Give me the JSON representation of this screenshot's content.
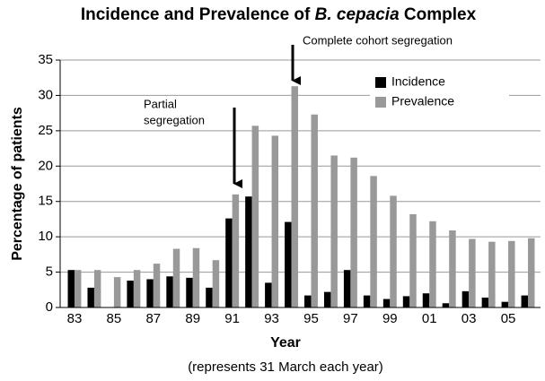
{
  "chart_data": {
    "type": "bar",
    "title_parts": [
      "Incidence and Prevalence of ",
      "B. cepacia",
      " Complex"
    ],
    "xlabel": "Year",
    "xnote": "(represents 31 March each year)",
    "ylabel": "Percentage of patients",
    "categories": [
      "83",
      null,
      "85",
      null,
      "87",
      null,
      "89",
      null,
      "91",
      null,
      "93",
      null,
      "95",
      null,
      "97",
      null,
      "99",
      null,
      "01",
      null,
      "03",
      null,
      "05",
      null
    ],
    "series": [
      {
        "name": "Incidence",
        "color": "#000000",
        "values": [
          5.3,
          2.8,
          0,
          3.8,
          4.0,
          4.4,
          4.2,
          2.8,
          12.6,
          15.7,
          3.5,
          12.1,
          1.7,
          2.2,
          5.3,
          1.7,
          1.2,
          1.6,
          2.0,
          0.6,
          2.3,
          1.4,
          0.8,
          1.7
        ]
      },
      {
        "name": "Prevalence",
        "color": "#999999",
        "values": [
          5.3,
          5.3,
          4.3,
          5.3,
          6.2,
          8.3,
          8.4,
          6.7,
          16.0,
          25.7,
          24.3,
          31.3,
          27.3,
          21.5,
          21.2,
          18.6,
          15.8,
          13.2,
          12.2,
          10.9,
          9.7,
          9.3,
          9.4,
          9.8
        ]
      }
    ],
    "ylim": [
      0,
      35
    ],
    "yticks": [
      0,
      5,
      10,
      15,
      20,
      25,
      30,
      35
    ],
    "grid": true,
    "legend": "upper right",
    "annotations": [
      {
        "lines": [
          "Partial",
          "segregation"
        ]
      },
      {
        "lines": [
          "Complete cohort segregation"
        ]
      }
    ]
  }
}
